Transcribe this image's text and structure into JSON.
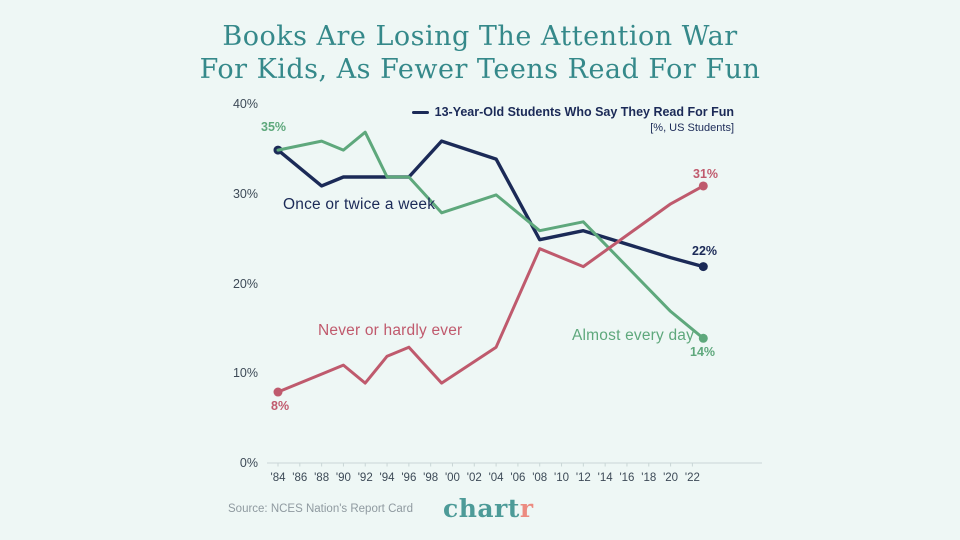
{
  "title": {
    "line1": "Books Are Losing The Attention War",
    "line2": "For Kids, As Fewer Teens Read For Fun"
  },
  "legend": {
    "series_label": "13-Year-Old Students Who Say They Read For Fun",
    "unit_note": "[%, US Students]"
  },
  "colors": {
    "background": "#eef7f5",
    "navy": "#1b2a57",
    "green": "#5ea87c",
    "rose": "#bf5a6d",
    "title_teal": "#35898a",
    "axis_text": "#3d4a57",
    "axis_line": "#c9d6d6",
    "source_text": "#8f9aa0",
    "logo_teal": "#4d9b98",
    "logo_salmon": "#ec8b80"
  },
  "chart_data": {
    "type": "line",
    "title": "13-Year-Old Students Who Say They Read For Fun",
    "unit": "% of US students",
    "x": [
      1984,
      1988,
      1990,
      1992,
      1994,
      1996,
      1999,
      2004,
      2008,
      2012,
      2020,
      2023
    ],
    "series": [
      {
        "name": "Once or twice a week",
        "color_key": "navy",
        "values": [
          35,
          31,
          32,
          32,
          32,
          32,
          36,
          34,
          25,
          26,
          23,
          22
        ],
        "start_dot": true,
        "end_dot": true,
        "width": 3.4
      },
      {
        "name": "Almost every day",
        "color_key": "green",
        "values": [
          35,
          36,
          35,
          37,
          32,
          32,
          28,
          30,
          26,
          27,
          17,
          14
        ],
        "start_dot": false,
        "end_dot": true,
        "width": 3
      },
      {
        "name": "Never or hardly ever",
        "color_key": "rose",
        "values": [
          8,
          10,
          11,
          9,
          12,
          13,
          9,
          13,
          24,
          22,
          29,
          31
        ],
        "start_dot": true,
        "end_dot": true,
        "width": 3
      }
    ],
    "x_tick_labels": [
      "'84",
      "'86",
      "'88",
      "'90",
      "'92",
      "'94",
      "'96",
      "'98",
      "'00",
      "'02",
      "'04",
      "'06",
      "'08",
      "'10",
      "'12",
      "'14",
      "'16",
      "'18",
      "'20",
      "'22"
    ],
    "y_tick_labels": [
      "0%",
      "10%",
      "20%",
      "30%",
      "40%"
    ],
    "ylim": [
      0,
      40
    ],
    "grid": false,
    "legend_position": "top-right"
  },
  "annotations": {
    "start_shared": "35%",
    "rose_start": "8%",
    "rose_end": "31%",
    "navy_end": "22%",
    "green_end": "14%"
  },
  "footer": {
    "source": "Source: NCES Nation's Report Card",
    "logo_chart": "chart",
    "logo_r": "r"
  }
}
